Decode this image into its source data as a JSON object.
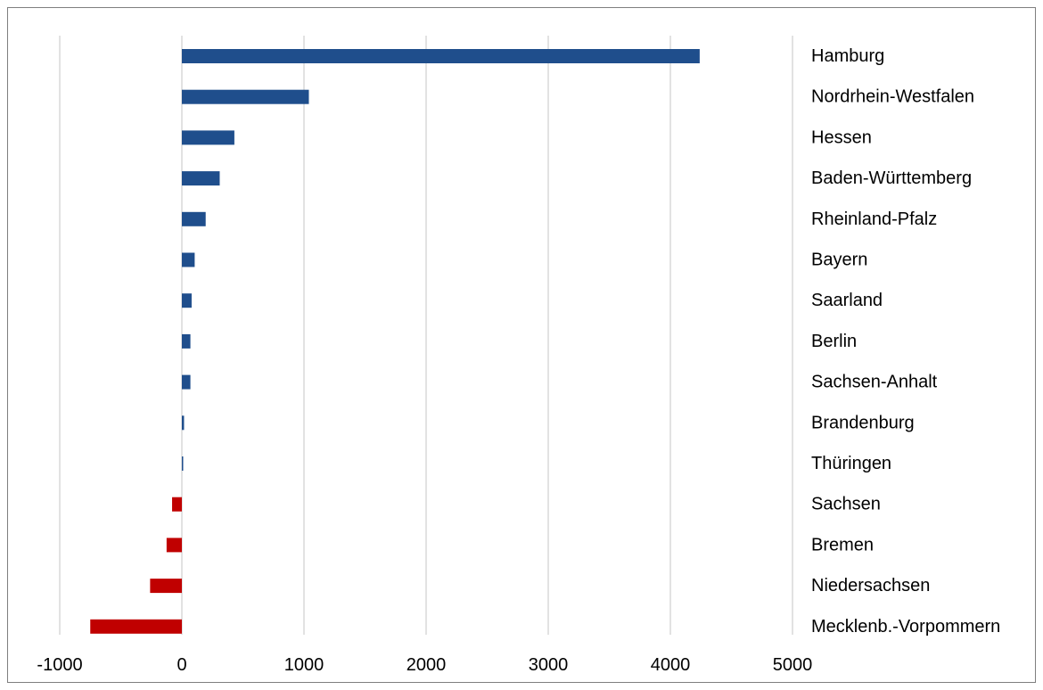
{
  "chart_data": {
    "type": "bar",
    "orientation": "horizontal",
    "categories": [
      "Hamburg",
      "Nordrhein-Westfalen",
      "Hessen",
      "Baden-Württemberg",
      "Rheinland-Pfalz",
      "Bayern",
      "Saarland",
      "Berlin",
      "Sachsen-Anhalt",
      "Brandenburg",
      "Thüringen",
      "Sachsen",
      "Bremen",
      "Niedersachsen",
      "Mecklenb.-Vorpommern"
    ],
    "values": [
      4240,
      1040,
      430,
      310,
      195,
      105,
      80,
      70,
      70,
      18,
      10,
      -80,
      -125,
      -260,
      -750
    ],
    "xlim": [
      -1000,
      5000
    ],
    "x_ticks": [
      "-1000",
      "0",
      "1000",
      "2000",
      "3000",
      "4000",
      "5000"
    ],
    "grid": true,
    "legend": "none",
    "title": "",
    "xlabel": "",
    "ylabel": "",
    "colors": {
      "positive": "#1f4e8c",
      "negative": "#c00000",
      "gridline": "#d9d9d9",
      "border": "#7f7f7f"
    }
  }
}
